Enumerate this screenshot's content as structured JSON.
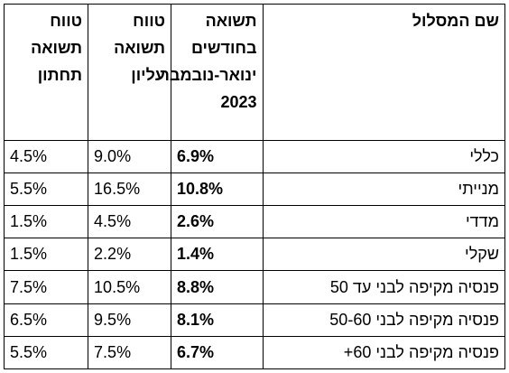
{
  "table": {
    "headers": {
      "name": [
        "שם המסלול"
      ],
      "return": [
        "תשואה",
        "בחודשים",
        "ינואר-נובמבר",
        "2023"
      ],
      "upper": [
        "טווח",
        "תשואה",
        "עליון"
      ],
      "lower": [
        "טווח",
        "תשואה",
        "תחתון"
      ]
    },
    "rows": [
      {
        "name": "כללי",
        "return": "6.9%",
        "upper": "9.0%",
        "lower": "4.5%"
      },
      {
        "name": "מנייתי",
        "return": "10.8%",
        "upper": "16.5%",
        "lower": "5.5%"
      },
      {
        "name": "מדדי",
        "return": "2.6%",
        "upper": "4.5%",
        "lower": "1.5%"
      },
      {
        "name": "שקלי",
        "return": "1.4%",
        "upper": "2.2%",
        "lower": "1.5%"
      },
      {
        "name": "פנסיה מקיפה לבני עד 50",
        "return": "8.8%",
        "upper": "10.5%",
        "lower": "7.5%"
      },
      {
        "name": "פנסיה מקיפה לבני 50-60",
        "return": "8.1%",
        "upper": "9.5%",
        "lower": "6.5%"
      },
      {
        "name": "פנסיה מקיפה לבני 60+",
        "return": "6.7%",
        "upper": "7.5%",
        "lower": "5.5%"
      }
    ]
  }
}
